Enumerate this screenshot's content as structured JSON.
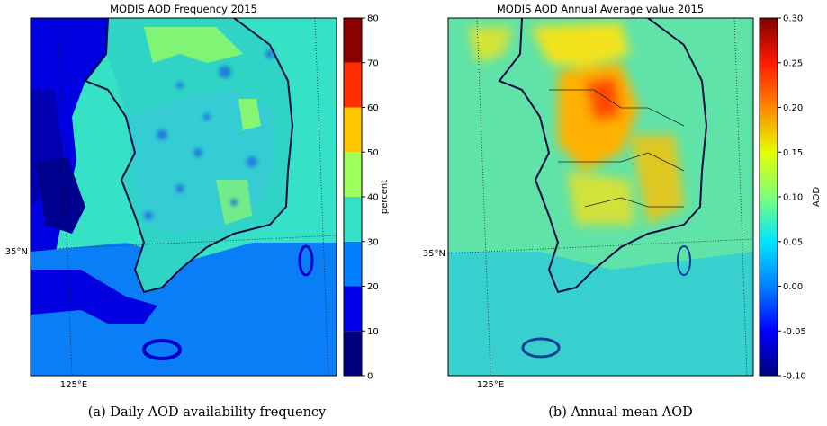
{
  "captions": {
    "a": "(a) Daily AOD availability frequency",
    "b": "(b) Annual mean AOD"
  },
  "chart_data": [
    {
      "type": "heatmap",
      "title": "MODIS AOD Frequency 2015",
      "xlabel": "",
      "ylabel": "",
      "lon_ticks": [
        "125°E"
      ],
      "lat_ticks": [
        "35°N"
      ],
      "colorbar": {
        "label": "percent",
        "range": [
          0,
          80
        ],
        "ticks": [
          0,
          10,
          20,
          30,
          40,
          50,
          60,
          70,
          80
        ],
        "discrete": true,
        "colors": [
          "#00007f",
          "#0000e6",
          "#0080ff",
          "#33e0c8",
          "#9cff5a",
          "#ffc800",
          "#ff3000",
          "#8b0000"
        ]
      }
    },
    {
      "type": "heatmap",
      "title": "MODIS AOD Annual Average value 2015",
      "xlabel": "",
      "ylabel": "",
      "lon_ticks": [
        "125°E"
      ],
      "lat_ticks": [
        "35°N"
      ],
      "colorbar": {
        "label": "AOD",
        "range": [
          -0.1,
          0.3
        ],
        "ticks": [
          "-0.10",
          "-0.05",
          "0.00",
          "0.05",
          "0.10",
          "0.15",
          "0.20",
          "0.25",
          "0.30"
        ],
        "discrete": false,
        "colors": [
          "#00007f",
          "#0000ff",
          "#0080ff",
          "#00e5ff",
          "#7dff7a",
          "#e5ff00",
          "#ff8800",
          "#ff1a00",
          "#7f0000"
        ]
      }
    }
  ]
}
